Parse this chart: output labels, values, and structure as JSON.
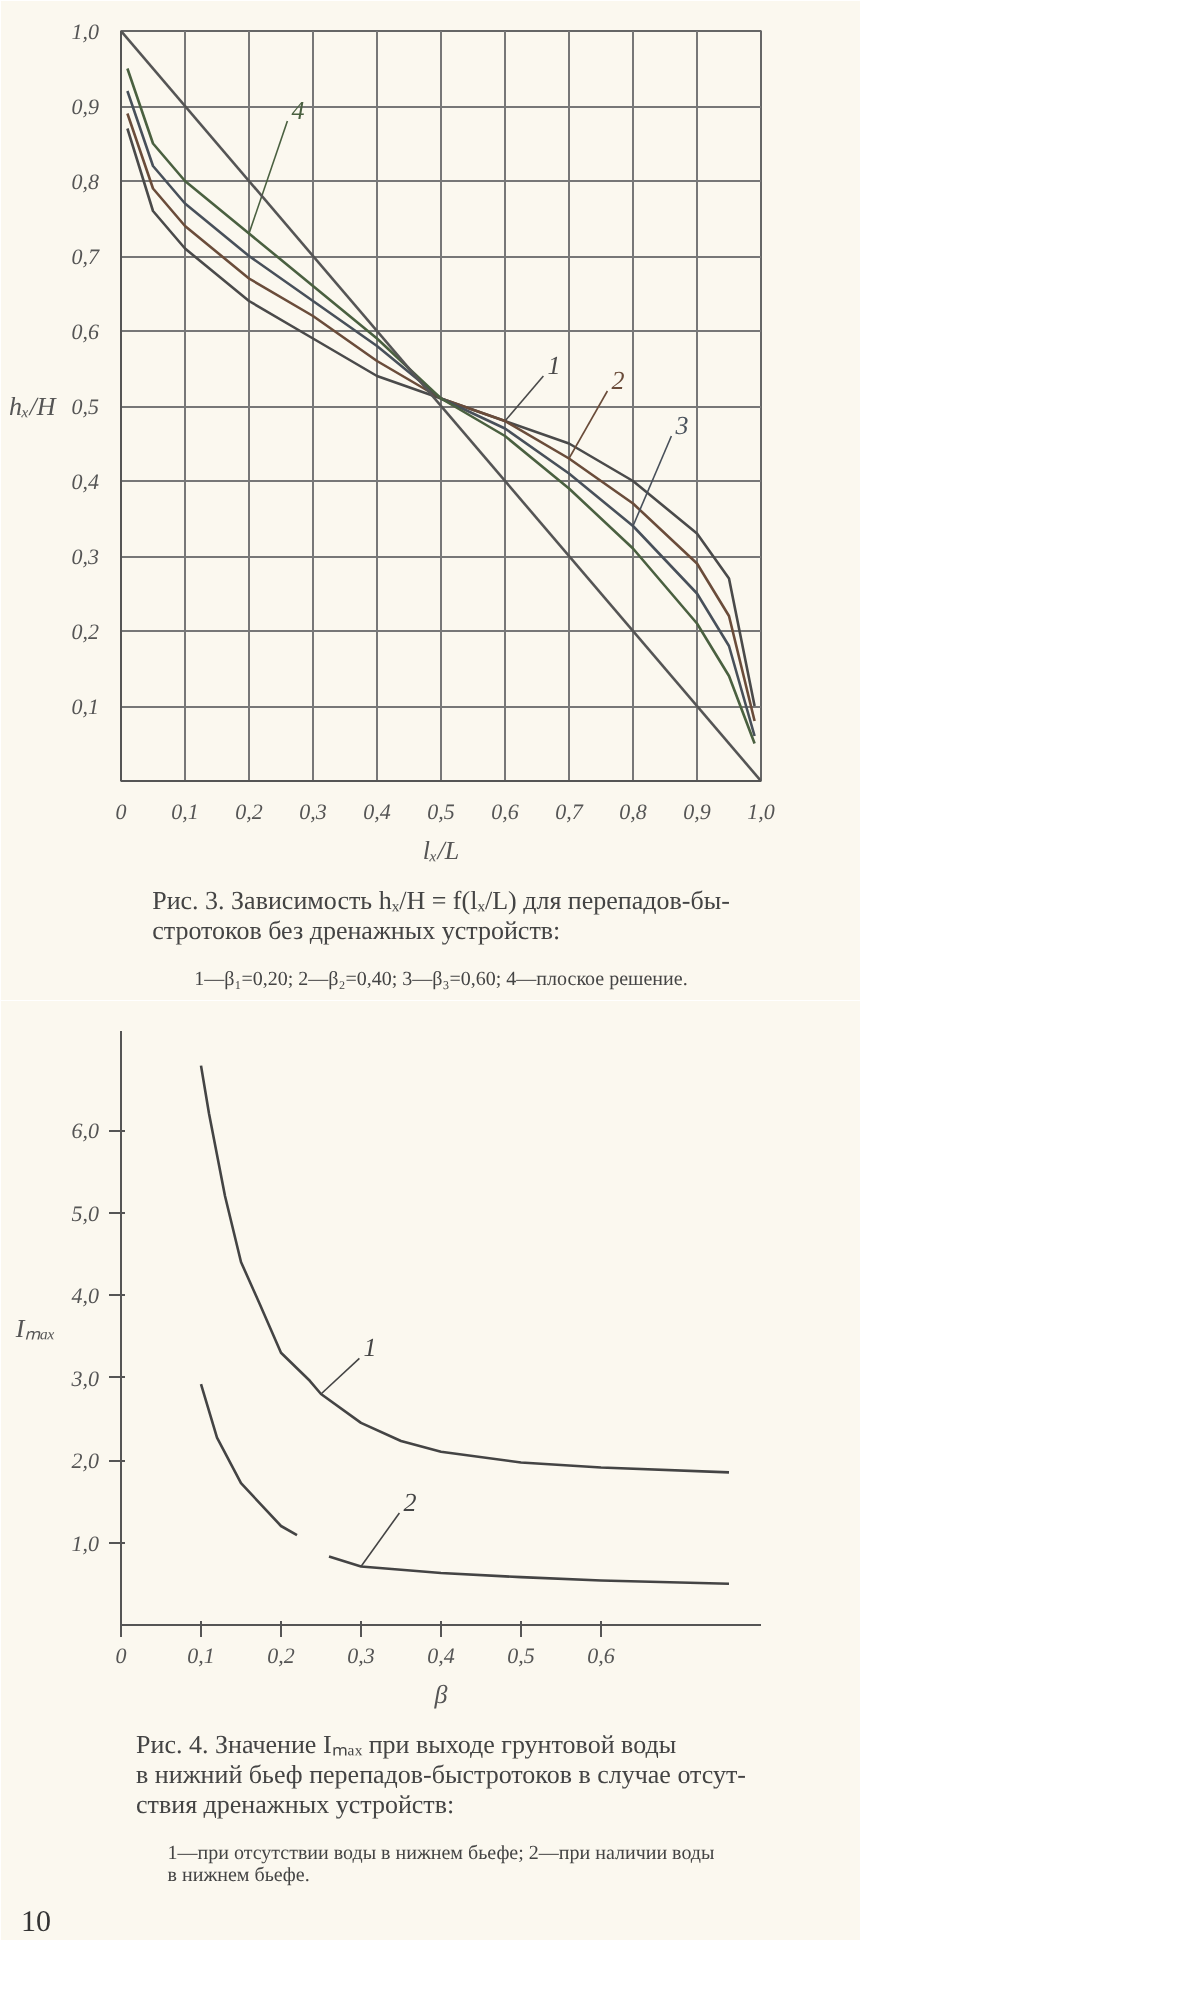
{
  "chart_data": [
    {
      "type": "line",
      "title": "Рис. 3. Зависимость hₓ/H = f(lₓ/L) для перепадов-бы-\nстротоков без дренажных устройств:",
      "subtitle": "1—β₁=0,20; 2—β₂=0,40; 3—β₃=0,60; 4—плоское решение.",
      "xlabel": "lₓ/L",
      "ylabel": "hₓ/H",
      "x": [
        0.01,
        0.05,
        0.1,
        0.2,
        0.3,
        0.4,
        0.5,
        0.6,
        0.7,
        0.8,
        0.9,
        0.95,
        0.99
      ],
      "series": [
        {
          "name": "1",
          "color": "#4a4a4a",
          "values": [
            0.87,
            0.76,
            0.71,
            0.64,
            0.59,
            0.54,
            0.51,
            0.48,
            0.45,
            0.4,
            0.33,
            0.27,
            0.1
          ]
        },
        {
          "name": "2",
          "color": "#6a4c3a",
          "values": [
            0.89,
            0.79,
            0.74,
            0.67,
            0.62,
            0.56,
            0.51,
            0.48,
            0.43,
            0.37,
            0.29,
            0.22,
            0.08
          ]
        },
        {
          "name": "3",
          "color": "#48505a",
          "values": [
            0.92,
            0.82,
            0.77,
            0.7,
            0.64,
            0.58,
            0.51,
            0.47,
            0.41,
            0.34,
            0.25,
            0.18,
            0.06
          ]
        },
        {
          "name": "4",
          "color": "#4a6040",
          "values": [
            0.95,
            0.85,
            0.8,
            0.73,
            0.66,
            0.59,
            0.51,
            0.46,
            0.39,
            0.31,
            0.21,
            0.14,
            0.05
          ]
        },
        {
          "color": "#555555",
          "x": [
            0,
            1.0
          ],
          "values": [
            1.0,
            0.0
          ]
        }
      ],
      "xlim": [
        0,
        1.0
      ],
      "ylim": [
        0,
        1.0
      ],
      "xticks": [
        {
          "value": 0,
          "label": "0"
        },
        {
          "value": 0.1,
          "label": "0,1"
        },
        {
          "value": 0.2,
          "label": "0,2"
        },
        {
          "value": 0.3,
          "label": "0,3"
        },
        {
          "value": 0.4,
          "label": "0,4"
        },
        {
          "value": 0.5,
          "label": "0,5"
        },
        {
          "value": 0.6,
          "label": "0,6"
        },
        {
          "value": 0.7,
          "label": "0,7"
        },
        {
          "value": 0.8,
          "label": "0,8"
        },
        {
          "value": 0.9,
          "label": "0,9"
        },
        {
          "value": 1.0,
          "label": "1,0"
        }
      ],
      "yticks": [
        {
          "value": 0.1,
          "label": "0,1"
        },
        {
          "value": 0.2,
          "label": "0,2"
        },
        {
          "value": 0.3,
          "label": "0,3"
        },
        {
          "value": 0.4,
          "label": "0,4"
        },
        {
          "value": 0.5,
          "label": "0,5"
        },
        {
          "value": 0.6,
          "label": "0,6"
        },
        {
          "value": 0.7,
          "label": "0,7"
        },
        {
          "value": 0.8,
          "label": "0,8"
        },
        {
          "value": 0.9,
          "label": "0,9"
        },
        {
          "value": 1.0,
          "label": "1,0"
        }
      ],
      "grid": true,
      "marker": "none",
      "line_style": "solid"
    },
    {
      "type": "line",
      "title": "Рис. 4. Значение Iₘₐₓ при выходе грунтовой воды\nв нижний бьеф перепадов-быстротоков в случае отсут-\nствия дренажных устройств:",
      "subtitle": "1—при отсутствии воды в нижнем бьефе; 2—при наличии воды\nв нижнем бьефе.",
      "xlabel": "β",
      "ylabel": "Iₘₐₓ",
      "annotations": [
        "10"
      ],
      "series": [
        {
          "name": "1",
          "color": "#444444",
          "x": [
            0.1,
            0.11,
            0.13,
            0.15,
            0.173,
            0.2,
            0.236,
            0.25,
            0.3,
            0.35,
            0.4,
            0.5,
            0.6,
            0.76
          ],
          "values": [
            6.78,
            6.2,
            5.2,
            4.4,
            3.9,
            3.3,
            2.96,
            2.8,
            2.45,
            2.23,
            2.1,
            1.97,
            1.91,
            1.85
          ]
        },
        {
          "name": "2",
          "color": "#444444",
          "x": [
            0.1,
            0.12,
            0.15,
            0.2,
            0.22,
            0.24,
            0.26,
            0.3,
            0.4,
            0.5,
            0.6,
            0.76
          ],
          "values": [
            2.92,
            2.27,
            1.72,
            1.2,
            1.09,
            null,
            0.83,
            0.71,
            0.63,
            0.58,
            0.54,
            0.5
          ]
        }
      ],
      "xlim": [
        0,
        0.8
      ],
      "ylim": [
        0,
        7.2
      ],
      "xticks": [
        {
          "value": 0,
          "label": "0"
        },
        {
          "value": 0.1,
          "label": "0,1"
        },
        {
          "value": 0.2,
          "label": "0,2"
        },
        {
          "value": 0.3,
          "label": "0,3"
        },
        {
          "value": 0.4,
          "label": "0,4"
        },
        {
          "value": 0.5,
          "label": "0,5"
        },
        {
          "value": 0.6,
          "label": "0,6"
        }
      ],
      "yticks": [
        {
          "value": 1.0,
          "label": "1,0"
        },
        {
          "value": 2.0,
          "label": "2,0"
        },
        {
          "value": 3.0,
          "label": "3,0"
        },
        {
          "value": 4.0,
          "label": "4,0"
        },
        {
          "value": 5.0,
          "label": "5,0"
        },
        {
          "value": 6.0,
          "label": "6,0"
        }
      ],
      "grid": false,
      "marker": "none",
      "line_style": "solid"
    }
  ]
}
